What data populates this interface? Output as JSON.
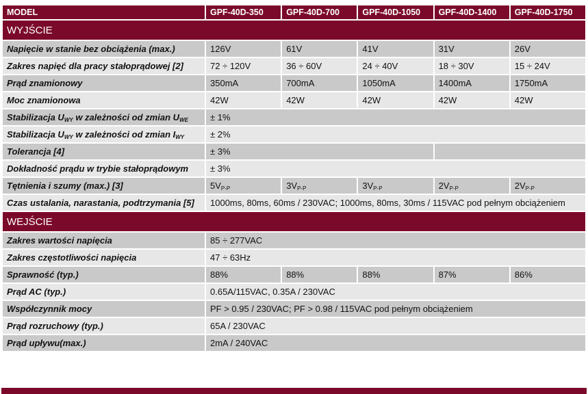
{
  "header": [
    "MODEL",
    "GPF-40D-350",
    "GPF-40D-700",
    "GPF-40D-1050",
    "GPF-40D-1400",
    "GPF-40D-1750"
  ],
  "sections": [
    {
      "title": "WYJŚCIE",
      "rows": [
        {
          "label": [
            "Napięcie w stanie bez obciążenia (max.)"
          ],
          "cells": [
            "126V",
            "61V",
            "41V",
            "31V",
            "26V"
          ]
        },
        {
          "label": [
            "Zakres napięć dla pracy stałoprądowej [2]"
          ],
          "cells": [
            "72 ÷ 120V",
            "36 ÷ 60V",
            "24 ÷ 40V",
            "18 ÷ 30V",
            "15 ÷ 24V"
          ]
        },
        {
          "label": [
            "Prąd znamionowy"
          ],
          "cells": [
            "350mA",
            "700mA",
            "1050mA",
            "1400mA",
            "1750mA"
          ]
        },
        {
          "label": [
            "Moc znamionowa"
          ],
          "cells": [
            "42W",
            "42W",
            "42W",
            "42W",
            "42W"
          ]
        },
        {
          "label": [
            "Stabilizacja U",
            "WY",
            " w zależności od zmian U",
            "WE"
          ],
          "cells": [
            "± 1%"
          ]
        },
        {
          "label": [
            "Stabilizacja U",
            "WY",
            " w zależności od zmian I",
            "WY"
          ],
          "cells": [
            "± 2%"
          ]
        },
        {
          "label": [
            "Tolerancja [4]"
          ],
          "cells": [
            {
              "text": "± 3%",
              "span": 3
            }
          ]
        },
        {
          "label": [
            "Dokładność prądu w trybie stałoprądowym"
          ],
          "cells": [
            "± 3%"
          ]
        },
        {
          "label": [
            "Tętnienia i szumy (max.) [3]"
          ],
          "cells": [
            [
              "5V",
              "P-P"
            ],
            [
              "3V",
              "P-P"
            ],
            [
              "3V",
              "P-P"
            ],
            [
              "2V",
              "P-P"
            ],
            [
              "2V",
              "P-P"
            ]
          ]
        },
        {
          "label": [
            "Czas ustalania, narastania, podtrzymania [5]"
          ],
          "cells": [
            "1000ms, 80ms, 60ms / 230VAC; 1000ms, 80ms, 30ms / 115VAC pod pełnym obciążeniem"
          ]
        }
      ]
    },
    {
      "title": "WEJŚCIE",
      "rows": [
        {
          "label": [
            "Zakres wartości napięcia"
          ],
          "cells": [
            "85 ÷ 277VAC"
          ]
        },
        {
          "label": [
            "Zakres częstotliwości napięcia"
          ],
          "cells": [
            "47 ÷ 63Hz"
          ]
        },
        {
          "label": [
            "Sprawność (typ.)"
          ],
          "cells": [
            "88%",
            "88%",
            "88%",
            "87%",
            "86%"
          ]
        },
        {
          "label": [
            "Prąd AC (typ.)"
          ],
          "cells": [
            "0.65A/115VAC, 0.35A / 230VAC"
          ]
        },
        {
          "label": [
            "Współczynnik mocy"
          ],
          "cells": [
            "PF > 0.95 / 230VAC; PF > 0.98 / 115VAC pod pełnym obciążeniem"
          ]
        },
        {
          "label": [
            "Prąd rozruchowy (typ.)"
          ],
          "cells": [
            "65A / 230VAC"
          ]
        },
        {
          "label": [
            "Prąd upływu(max.)"
          ],
          "cells": [
            "2mA / 240VAC"
          ]
        }
      ]
    }
  ]
}
